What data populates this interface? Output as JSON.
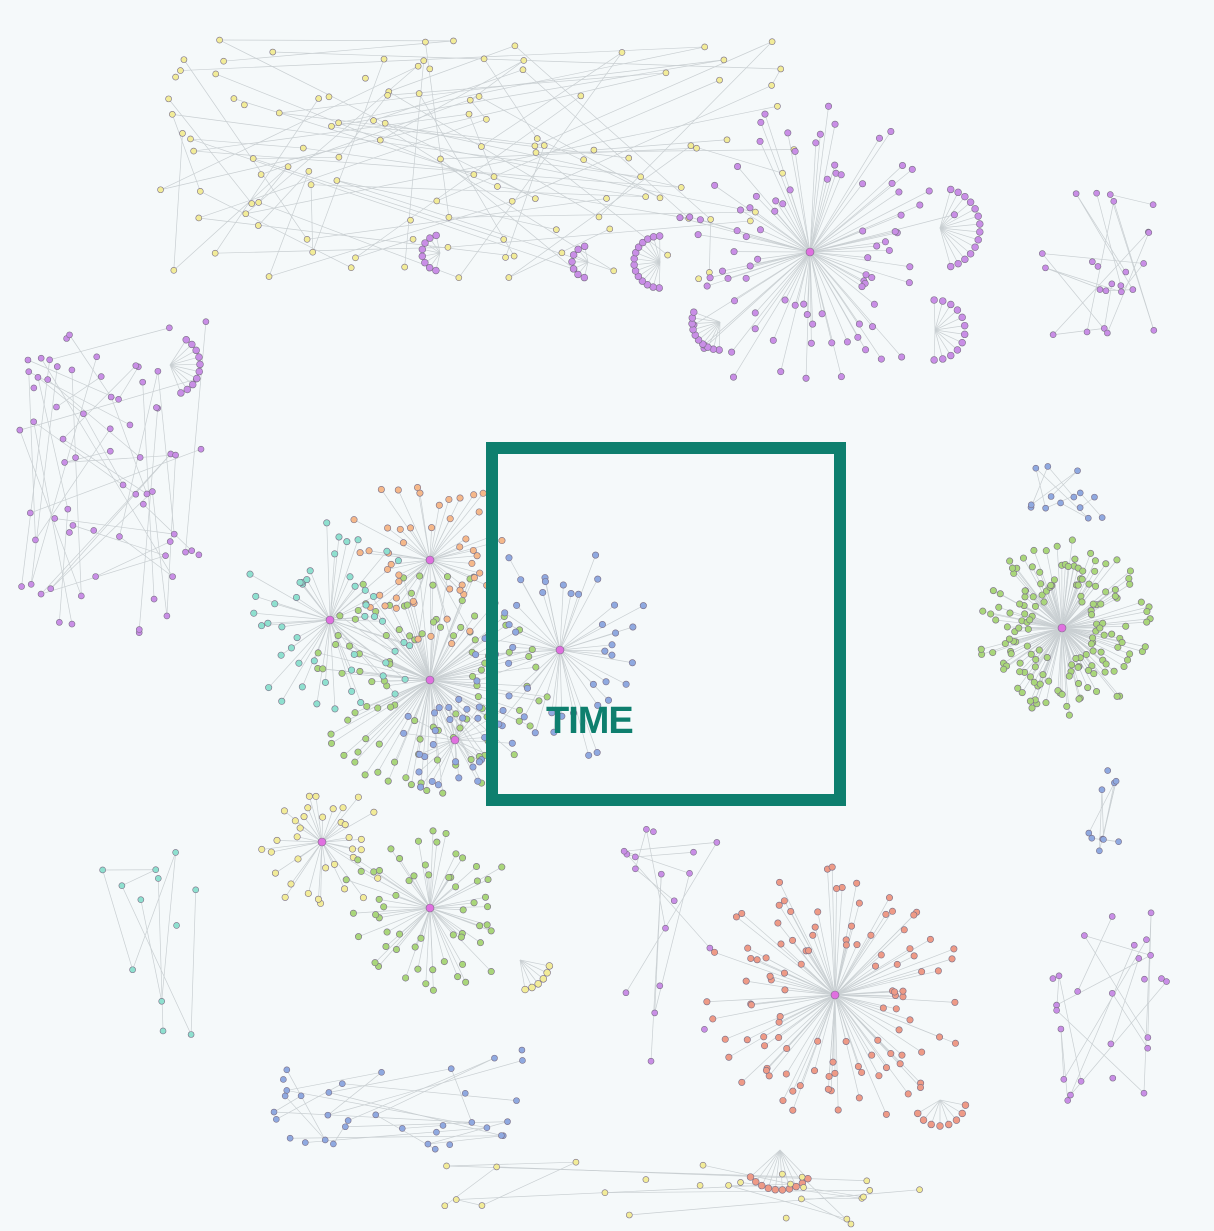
{
  "colors": {
    "background": "#f5f9fa",
    "edge": "#c9cfd2",
    "highlight": "#0e7f6e",
    "cluster_violet": "#c98ee6",
    "cluster_yellow": "#f2ec98",
    "cluster_orange": "#f5b88a",
    "cluster_green": "#a9d67a",
    "cluster_blue": "#8fa9e0",
    "cluster_teal": "#8ee0cf",
    "cluster_red": "#ee9a86",
    "hub": "#e070e0"
  },
  "highlight": {
    "label": "TIME"
  },
  "legend_free": true
}
